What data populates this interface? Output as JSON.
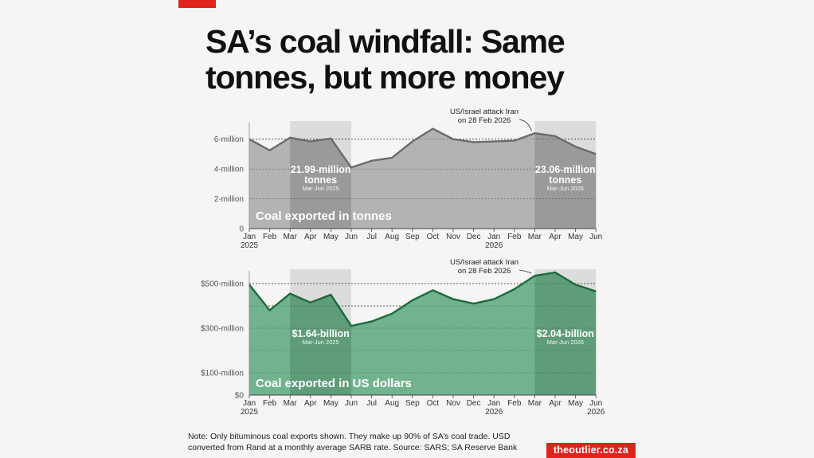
{
  "title_lines": [
    "SA’s coal windfall: Same",
    "tonnes, but more money"
  ],
  "note": "Note: Only bituminous coal exports shown. They make up 90% of SA’s coal trade. USD converted from Rand at a monthly average SARB rate. Source: SARS; SA Reserve Bank",
  "brand": "theoutlier.co.za",
  "chart_data": [
    {
      "type": "area",
      "title": "Coal exported in tonnes",
      "x": [
        "Jan 2025",
        "Feb",
        "Mar",
        "Apr",
        "May",
        "Jun",
        "Jul",
        "Aug",
        "Sep",
        "Oct",
        "Nov",
        "Dec",
        "Jan 2026",
        "Feb",
        "Mar",
        "Apr",
        "May",
        "Jun"
      ],
      "tick_labels": [
        [
          "Jan",
          "2025"
        ],
        [
          "Feb"
        ],
        [
          "Mar"
        ],
        [
          "Apr"
        ],
        [
          "May"
        ],
        [
          "Jun"
        ],
        [
          "Jul"
        ],
        [
          "Aug"
        ],
        [
          "Sep"
        ],
        [
          "Oct"
        ],
        [
          "Nov"
        ],
        [
          "Dec"
        ],
        [
          "Jan",
          "2026"
        ],
        [
          "Feb"
        ],
        [
          "Mar"
        ],
        [
          "Apr"
        ],
        [
          "May"
        ],
        [
          "Jun"
        ]
      ],
      "values": [
        6.0,
        5.25,
        6.1,
        5.85,
        6.05,
        4.1,
        4.55,
        4.75,
        5.85,
        6.7,
        6.0,
        5.8,
        5.85,
        5.9,
        6.4,
        6.2,
        5.5,
        5.0
      ],
      "unit": "million tonnes",
      "ylim": [
        0,
        7
      ],
      "y_ticks": [
        0,
        2,
        4,
        6
      ],
      "y_tick_labels": [
        "0",
        "2-million",
        "4-million",
        "6-million"
      ],
      "colors": {
        "fill": "#b3b3b3",
        "line": "#6b6b6b",
        "shade": "#9a9a9a",
        "band": "#dcdcdc"
      },
      "highlights": [
        {
          "from": "Mar",
          "to": "Jun",
          "label": "21.99-million tonnes",
          "label_lines": [
            "21.99-million",
            "tonnes"
          ],
          "sub": "Mar-Jun 2025"
        },
        {
          "from": "Mar 2026",
          "to": "Jun 2026",
          "label": "23.06-million tonnes",
          "label_lines": [
            "23.06-million",
            "tonnes"
          ],
          "sub": "Mar-Jun 2026"
        }
      ],
      "annotation": {
        "lines": [
          "US/Israel attack Iran",
          "on 28 Feb 2026"
        ]
      }
    },
    {
      "type": "area",
      "title": "Coal exported in US dollars",
      "x": [
        "Jan 2025",
        "Feb",
        "Mar",
        "Apr",
        "May",
        "Jun",
        "Jul",
        "Aug",
        "Sep",
        "Oct",
        "Nov",
        "Dec",
        "Jan 2026",
        "Feb",
        "Mar",
        "Apr",
        "May",
        "Jun 2026"
      ],
      "tick_labels": [
        [
          "Jan",
          "2025"
        ],
        [
          "Feb"
        ],
        [
          "Mar"
        ],
        [
          "Apr"
        ],
        [
          "May"
        ],
        [
          "Jun"
        ],
        [
          "Jul"
        ],
        [
          "Aug"
        ],
        [
          "Sep"
        ],
        [
          "Oct"
        ],
        [
          "Nov"
        ],
        [
          "Dec"
        ],
        [
          "Jan",
          "2026"
        ],
        [
          "Feb"
        ],
        [
          "Mar"
        ],
        [
          "Apr"
        ],
        [
          "May"
        ],
        [
          "Jun",
          "2026"
        ]
      ],
      "values": [
        495,
        380,
        455,
        415,
        450,
        310,
        330,
        365,
        425,
        470,
        430,
        410,
        430,
        475,
        535,
        550,
        495,
        465
      ],
      "unit": "US$ million",
      "ylim": [
        0,
        550
      ],
      "y_ticks": [
        0,
        100,
        200,
        300,
        400,
        500
      ],
      "y_tick_labels": [
        "$0",
        "$100-million",
        "",
        "$300-million",
        "",
        "$500-million"
      ],
      "colors": {
        "fill": "#72b38f",
        "line": "#1b6b3c",
        "shade": "#5f9c7a",
        "band": "#dcdcdc"
      },
      "highlights": [
        {
          "from": "Mar",
          "to": "Jun",
          "label": "$1.64-billion",
          "label_lines": [
            "$1.64-billion"
          ],
          "sub": "Mar-Jun 2025"
        },
        {
          "from": "Mar 2026",
          "to": "Jun 2026",
          "label": "$2.04-billion",
          "label_lines": [
            "$2.04-billion"
          ],
          "sub": "Mar-Jun 2026"
        }
      ],
      "annotation": {
        "lines": [
          "US/Israel attack Iran",
          "on 28 Feb 2026"
        ]
      }
    }
  ]
}
